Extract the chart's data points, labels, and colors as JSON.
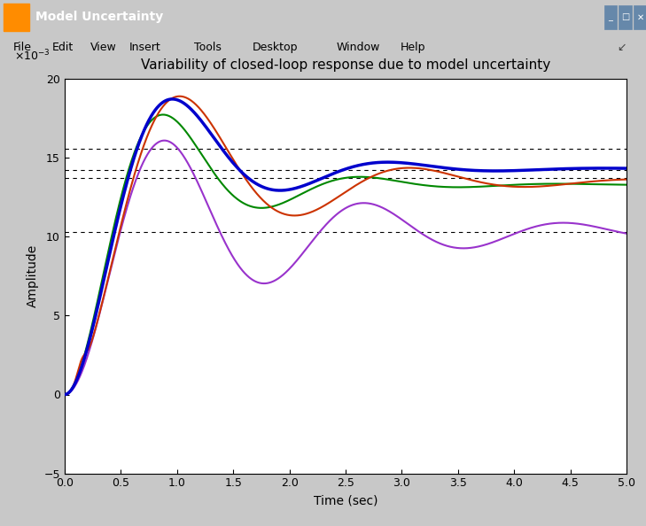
{
  "title": "Variability of closed-loop response due to model uncertainty",
  "xlabel": "Time (sec)",
  "ylabel": "Amplitude",
  "xlim": [
    0,
    5
  ],
  "ylim": [
    -5,
    20
  ],
  "yticks": [
    -5,
    0,
    5,
    10,
    15,
    20
  ],
  "xticks": [
    0,
    0.5,
    1,
    1.5,
    2,
    2.5,
    3,
    3.5,
    4,
    4.5,
    5
  ],
  "scale_factor": 0.001,
  "hlines": [
    10.3,
    13.7,
    14.2,
    15.6
  ],
  "window_title": "Model Uncertainty",
  "window_bg": "#c0c0c0",
  "plot_bg": "#ffffff",
  "titlebar_bg": "#003b7a",
  "menubar_bg": "#d4d0c8",
  "colors": {
    "blue": "#0000cc",
    "red": "#cc3300",
    "green": "#008800",
    "purple": "#9933cc"
  },
  "line_widths": {
    "blue": 2.5,
    "red": 1.5,
    "green": 1.5,
    "purple": 1.5
  }
}
